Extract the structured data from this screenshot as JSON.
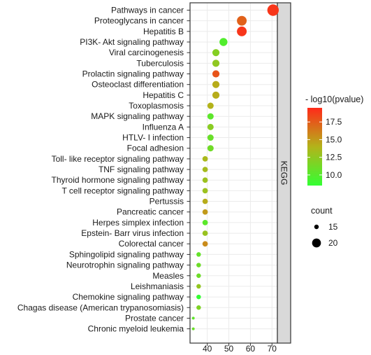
{
  "chart_data": {
    "type": "scatter",
    "facet_label": "KEGG",
    "xlabel": "",
    "ylabel": "",
    "xlim": [
      32,
      72.5
    ],
    "x_ticks": [
      40,
      50,
      60,
      70
    ],
    "grid": true,
    "legend_position": "right",
    "color_scale": {
      "title": "- log10(pvalue)",
      "low": 8.5,
      "high": 19.5,
      "ticks": [
        10.0,
        12.5,
        15.0,
        17.5
      ],
      "low_color": "#33ff33",
      "high_color": "#ff2a1a"
    },
    "size_scale": {
      "title": "count",
      "ticks": [
        15,
        20
      ]
    },
    "categories": [
      "Pathways in cancer",
      "Proteoglycans in cancer",
      "Hepatitis B",
      "PI3K- Akt signaling pathway",
      "Viral carcinogenesis",
      "Tuberculosis",
      "Prolactin signaling pathway",
      "Osteoclast differentiation",
      "Hepatitis C",
      "Toxoplasmosis",
      "MAPK signaling pathway",
      "Influenza A",
      "HTLV- I infection",
      "Focal adhesion",
      "Toll- like receptor signaling pathway",
      "TNF signaling pathway",
      "Thyroid hormone signaling pathway",
      "T cell receptor signaling pathway",
      "Pertussis",
      "Pancreatic cancer",
      "Herpes simplex infection",
      "Epstein- Barr virus infection",
      "Colorectal cancer",
      "Sphingolipid signaling pathway",
      "Neurotrophin signaling pathway",
      "Measles",
      "Leishmaniasis",
      "Chemokine signaling pathway",
      "Chagas disease (American trypanosomiasis)",
      "Prostate cancer",
      "Chronic myeloid leukemia"
    ],
    "x": [
      70.5,
      56,
      56,
      47.5,
      44,
      44,
      44,
      44,
      44,
      41.5,
      41.5,
      41.5,
      41.5,
      41.5,
      39,
      39,
      39,
      39,
      39,
      39,
      39,
      39,
      39,
      36,
      36,
      36,
      36,
      36,
      36,
      33.5,
      33.5
    ],
    "neg_log10_pvalue": [
      19.0,
      17.3,
      19.0,
      9.8,
      12.0,
      12.5,
      17.8,
      14.3,
      14.3,
      14.0,
      10.3,
      12.2,
      10.8,
      11.1,
      13.6,
      13.4,
      13.0,
      13.0,
      14.3,
      15.0,
      10.2,
      12.9,
      15.6,
      10.6,
      11.0,
      11.0,
      12.6,
      8.6,
      11.7,
      10.4,
      10.8
    ],
    "count": [
      23,
      21,
      21,
      19,
      18,
      18,
      18,
      18,
      18,
      17,
      17,
      17,
      17,
      17,
      16,
      16,
      16,
      16,
      16,
      16,
      16,
      16,
      16,
      15,
      15,
      15,
      15,
      15,
      15,
      13,
      13
    ]
  }
}
